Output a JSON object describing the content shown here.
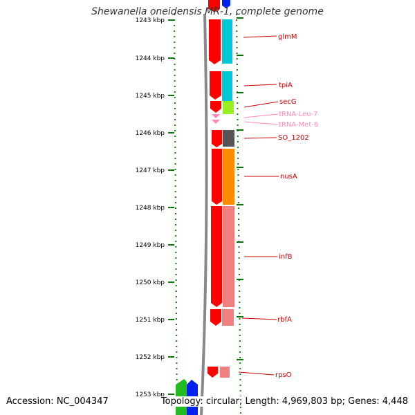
{
  "title": "Shewanella oneidensis MR-1, complete genome",
  "accession": "Accession: NC_004347",
  "summary": "Topology: circular; Length: 4,969,803 bp; Genes: 4,448",
  "kbp_ticks": [
    "1243 kbp",
    "1244 kbp",
    "1245 kbp",
    "1246 kbp",
    "1247 kbp",
    "1248 kbp",
    "1249 kbp",
    "1250 kbp",
    "1251 kbp",
    "1252 kbp",
    "1253 kbp"
  ],
  "gene_labels": [
    {
      "id": "glmM",
      "text": "glmM",
      "kind": "gene"
    },
    {
      "id": "tpiA",
      "text": "tpiA",
      "kind": "gene"
    },
    {
      "id": "secG",
      "text": "secG",
      "kind": "gene"
    },
    {
      "id": "trna-leu-7",
      "text": "tRNA-Leu-7",
      "kind": "trna"
    },
    {
      "id": "trna-met-6",
      "text": "tRNA-Met-6",
      "kind": "trna"
    },
    {
      "id": "so-1202",
      "text": "SO_1202",
      "kind": "gene"
    },
    {
      "id": "nusA",
      "text": "nusA",
      "kind": "gene"
    },
    {
      "id": "infB",
      "text": "infB",
      "kind": "gene"
    },
    {
      "id": "rbfA",
      "text": "rbfA",
      "kind": "gene"
    },
    {
      "id": "rpsO",
      "text": "rpsO",
      "kind": "gene"
    }
  ],
  "colors": {
    "gene_red": "#ff0000",
    "label_red": "#cc0000",
    "trna_pink": "#ff88bb",
    "tick_green": "#007700",
    "cyan": "#00c8d8",
    "lime": "#99ee22",
    "dark_gray": "#555555",
    "orange": "#ff8c00",
    "salmon": "#f08080",
    "backbone_gray": "#888888",
    "blue": "#0022ee",
    "green": "#22bb22"
  }
}
